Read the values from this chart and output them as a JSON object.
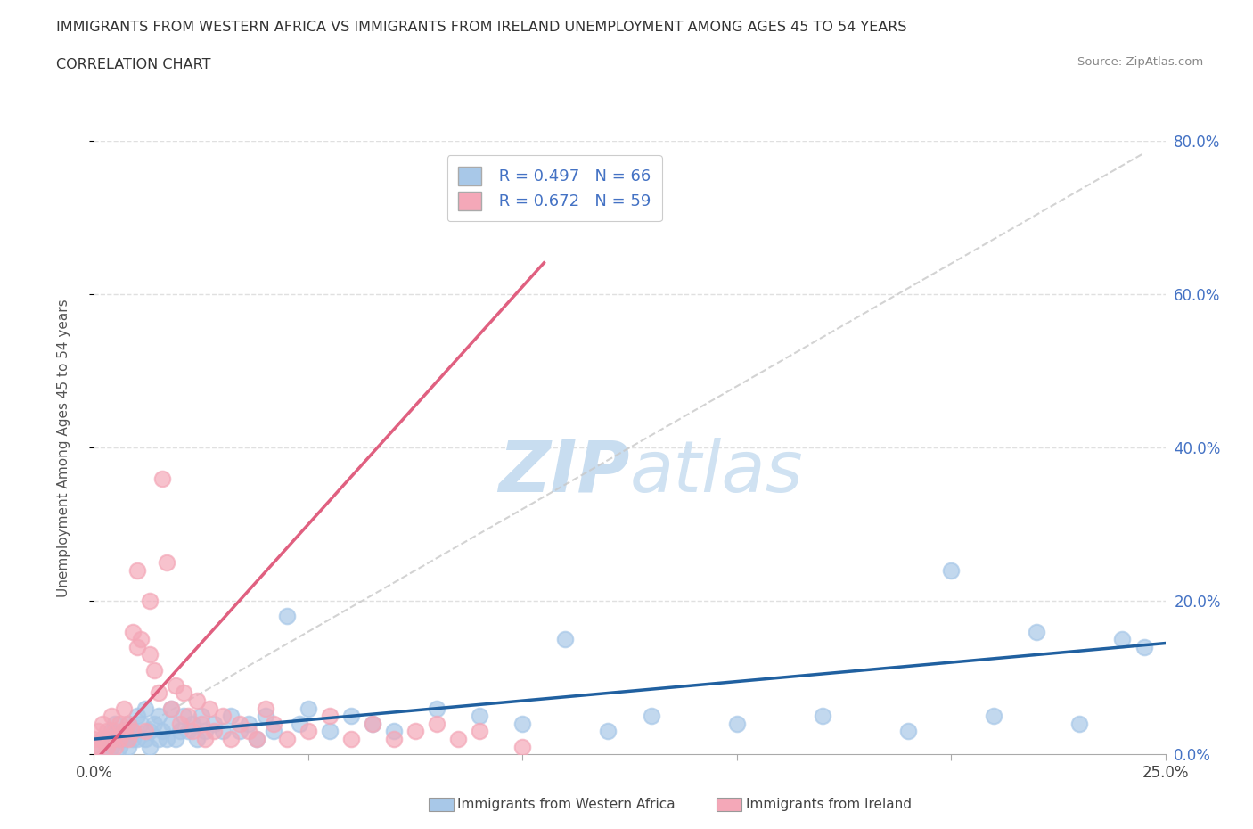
{
  "title_line1": "IMMIGRANTS FROM WESTERN AFRICA VS IMMIGRANTS FROM IRELAND UNEMPLOYMENT AMONG AGES 45 TO 54 YEARS",
  "title_line2": "CORRELATION CHART",
  "source_text": "Source: ZipAtlas.com",
  "ylabel": "Unemployment Among Ages 45 to 54 years",
  "xmin": 0.0,
  "xmax": 0.25,
  "ymin": 0.0,
  "ymax": 0.8,
  "western_africa_R": 0.497,
  "western_africa_N": 66,
  "ireland_R": 0.672,
  "ireland_N": 59,
  "western_africa_color": "#a8c8e8",
  "ireland_color": "#f4a8b8",
  "western_africa_line_color": "#2060a0",
  "ireland_line_color": "#e06080",
  "ref_line_color": "#c8c8c8",
  "watermark_color": "#c8ddf0",
  "grid_color": "#e0e0e0",
  "background_color": "#ffffff",
  "western_africa_x": [
    0.001,
    0.002,
    0.003,
    0.004,
    0.004,
    0.005,
    0.005,
    0.006,
    0.007,
    0.007,
    0.008,
    0.008,
    0.009,
    0.009,
    0.01,
    0.01,
    0.011,
    0.012,
    0.012,
    0.013,
    0.013,
    0.014,
    0.015,
    0.015,
    0.016,
    0.017,
    0.018,
    0.018,
    0.019,
    0.02,
    0.021,
    0.022,
    0.023,
    0.024,
    0.025,
    0.026,
    0.028,
    0.03,
    0.032,
    0.034,
    0.036,
    0.038,
    0.04,
    0.042,
    0.045,
    0.048,
    0.05,
    0.055,
    0.06,
    0.065,
    0.07,
    0.08,
    0.09,
    0.1,
    0.11,
    0.12,
    0.13,
    0.15,
    0.17,
    0.19,
    0.2,
    0.21,
    0.22,
    0.23,
    0.24,
    0.245
  ],
  "western_africa_y": [
    0.01,
    0.02,
    0.01,
    0.03,
    0.01,
    0.02,
    0.04,
    0.01,
    0.03,
    0.02,
    0.04,
    0.01,
    0.03,
    0.02,
    0.05,
    0.02,
    0.04,
    0.02,
    0.06,
    0.03,
    0.01,
    0.04,
    0.02,
    0.05,
    0.03,
    0.02,
    0.04,
    0.06,
    0.02,
    0.03,
    0.05,
    0.03,
    0.04,
    0.02,
    0.05,
    0.03,
    0.04,
    0.03,
    0.05,
    0.03,
    0.04,
    0.02,
    0.05,
    0.03,
    0.18,
    0.04,
    0.06,
    0.03,
    0.05,
    0.04,
    0.03,
    0.06,
    0.05,
    0.04,
    0.15,
    0.03,
    0.05,
    0.04,
    0.05,
    0.03,
    0.24,
    0.05,
    0.16,
    0.04,
    0.15,
    0.14
  ],
  "ireland_x": [
    0.0,
    0.0,
    0.001,
    0.001,
    0.002,
    0.002,
    0.003,
    0.003,
    0.004,
    0.004,
    0.005,
    0.005,
    0.006,
    0.006,
    0.007,
    0.007,
    0.008,
    0.008,
    0.009,
    0.009,
    0.01,
    0.01,
    0.011,
    0.012,
    0.013,
    0.013,
    0.014,
    0.015,
    0.016,
    0.017,
    0.018,
    0.019,
    0.02,
    0.021,
    0.022,
    0.023,
    0.024,
    0.025,
    0.026,
    0.027,
    0.028,
    0.03,
    0.032,
    0.034,
    0.036,
    0.038,
    0.04,
    0.042,
    0.045,
    0.05,
    0.055,
    0.06,
    0.065,
    0.07,
    0.075,
    0.08,
    0.085,
    0.09,
    0.1
  ],
  "ireland_y": [
    0.01,
    0.02,
    0.01,
    0.03,
    0.02,
    0.04,
    0.01,
    0.03,
    0.02,
    0.05,
    0.03,
    0.01,
    0.04,
    0.02,
    0.03,
    0.06,
    0.02,
    0.04,
    0.03,
    0.16,
    0.14,
    0.24,
    0.15,
    0.03,
    0.13,
    0.2,
    0.11,
    0.08,
    0.36,
    0.25,
    0.06,
    0.09,
    0.04,
    0.08,
    0.05,
    0.03,
    0.07,
    0.04,
    0.02,
    0.06,
    0.03,
    0.05,
    0.02,
    0.04,
    0.03,
    0.02,
    0.06,
    0.04,
    0.02,
    0.03,
    0.05,
    0.02,
    0.04,
    0.02,
    0.03,
    0.04,
    0.02,
    0.03,
    0.01
  ]
}
